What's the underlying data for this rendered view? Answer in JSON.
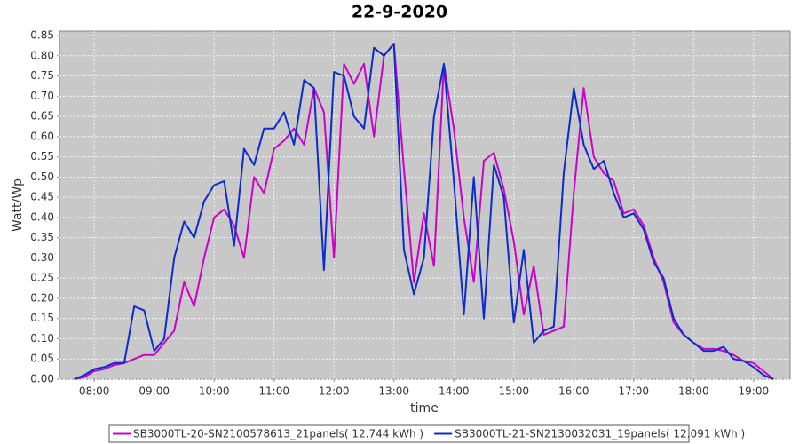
{
  "chart_data": {
    "type": "line",
    "title": "22-9-2020",
    "xlabel": "time",
    "ylabel": "Watt/Wp",
    "x": [
      7.667,
      7.833,
      8,
      8.167,
      8.333,
      8.5,
      8.667,
      8.833,
      9,
      9.167,
      9.333,
      9.5,
      9.667,
      9.833,
      10,
      10.167,
      10.333,
      10.5,
      10.667,
      10.833,
      11,
      11.167,
      11.333,
      11.5,
      11.667,
      11.833,
      12,
      12.167,
      12.333,
      12.5,
      12.667,
      12.833,
      13,
      13.167,
      13.333,
      13.5,
      13.667,
      13.833,
      14,
      14.167,
      14.333,
      14.5,
      14.667,
      14.833,
      15,
      15.167,
      15.333,
      15.5,
      15.667,
      15.833,
      16,
      16.167,
      16.333,
      16.5,
      16.667,
      16.833,
      17,
      17.167,
      17.333,
      17.5,
      17.667,
      17.833,
      18,
      18.167,
      18.333,
      18.5,
      18.667,
      18.833,
      19,
      19.167,
      19.333
    ],
    "series": [
      {
        "name": "SB3000TL-20-SN2100578613_21panels( 12.744 kWh )",
        "color": "#cc00cc",
        "values": [
          0,
          0.005,
          0.02,
          0.025,
          0.035,
          0.04,
          0.05,
          0.06,
          0.06,
          0.09,
          0.12,
          0.24,
          0.18,
          0.3,
          0.4,
          0.42,
          0.38,
          0.3,
          0.5,
          0.46,
          0.57,
          0.59,
          0.62,
          0.58,
          0.72,
          0.66,
          0.3,
          0.78,
          0.73,
          0.78,
          0.6,
          0.8,
          0.83,
          0.52,
          0.24,
          0.41,
          0.28,
          0.78,
          0.62,
          0.4,
          0.24,
          0.54,
          0.56,
          0.47,
          0.34,
          0.16,
          0.28,
          0.11,
          0.12,
          0.13,
          0.46,
          0.72,
          0.55,
          0.51,
          0.49,
          0.41,
          0.42,
          0.38,
          0.3,
          0.24,
          0.14,
          0.11,
          0.09,
          0.075,
          0.075,
          0.07,
          0.06,
          0.045,
          0.04,
          0.02,
          0
        ]
      },
      {
        "name": "SB3000TL-21-SN2130032031_19panels( 12.091 kWh )",
        "color": "#0a2ccc",
        "values": [
          0,
          0.01,
          0.025,
          0.03,
          0.04,
          0.04,
          0.18,
          0.17,
          0.07,
          0.1,
          0.3,
          0.39,
          0.35,
          0.44,
          0.48,
          0.49,
          0.33,
          0.57,
          0.53,
          0.62,
          0.62,
          0.66,
          0.58,
          0.74,
          0.72,
          0.27,
          0.76,
          0.75,
          0.65,
          0.62,
          0.82,
          0.8,
          0.83,
          0.32,
          0.21,
          0.3,
          0.65,
          0.78,
          0.49,
          0.16,
          0.5,
          0.15,
          0.53,
          0.45,
          0.14,
          0.32,
          0.09,
          0.12,
          0.13,
          0.51,
          0.72,
          0.58,
          0.52,
          0.54,
          0.46,
          0.4,
          0.41,
          0.37,
          0.29,
          0.25,
          0.15,
          0.11,
          0.09,
          0.07,
          0.07,
          0.08,
          0.05,
          0.045,
          0.03,
          0.01,
          0
        ]
      }
    ],
    "xlim": [
      7.42,
      19.61
    ],
    "xticks": [
      {
        "value": 8,
        "label": "08:00"
      },
      {
        "value": 9,
        "label": "09:00"
      },
      {
        "value": 10,
        "label": "10:00"
      },
      {
        "value": 11,
        "label": "11:00"
      },
      {
        "value": 12,
        "label": "12:00"
      },
      {
        "value": 13,
        "label": "13:00"
      },
      {
        "value": 14,
        "label": "14:00"
      },
      {
        "value": 15,
        "label": "15:00"
      },
      {
        "value": 16,
        "label": "16:00"
      },
      {
        "value": 17,
        "label": "17:00"
      },
      {
        "value": 18,
        "label": "18:00"
      },
      {
        "value": 19,
        "label": "19:00"
      }
    ],
    "ylim": [
      0,
      0.861
    ],
    "yticks": [
      {
        "value": 0,
        "label": "0.00"
      },
      {
        "value": 0.05,
        "label": "0.05"
      },
      {
        "value": 0.1,
        "label": "0.10"
      },
      {
        "value": 0.15,
        "label": "0.15"
      },
      {
        "value": 0.2,
        "label": "0.20"
      },
      {
        "value": 0.25,
        "label": "0.25"
      },
      {
        "value": 0.3,
        "label": "0.30"
      },
      {
        "value": 0.35,
        "label": "0.35"
      },
      {
        "value": 0.4,
        "label": "0.40"
      },
      {
        "value": 0.45,
        "label": "0.45"
      },
      {
        "value": 0.5,
        "label": "0.50"
      },
      {
        "value": 0.55,
        "label": "0.55"
      },
      {
        "value": 0.6,
        "label": "0.60"
      },
      {
        "value": 0.65,
        "label": "0.65"
      },
      {
        "value": 0.7,
        "label": "0.70"
      },
      {
        "value": 0.75,
        "label": "0.75"
      },
      {
        "value": 0.8,
        "label": "0.80"
      },
      {
        "value": 0.85,
        "label": "0.85"
      }
    ],
    "grid": true,
    "legend": "bottom"
  }
}
